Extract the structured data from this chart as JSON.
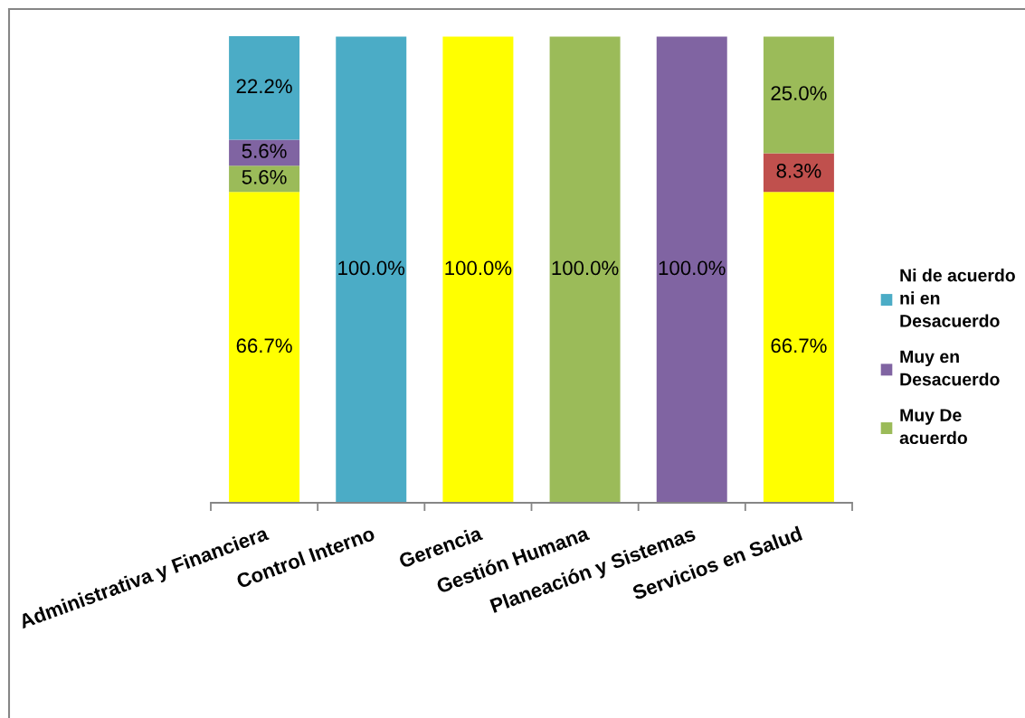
{
  "chart_data": {
    "type": "bar",
    "stacked": true,
    "legend": "right",
    "tick_labels": "x",
    "categories": [
      "Administrativa y Financiera",
      "Control Interno",
      "Gerencia",
      "Gestión Humana",
      "Planeación y Sistemas",
      "Servicios en Salud"
    ],
    "series": [
      {
        "color": "#ffff00",
        "values": [
          66.7,
          null,
          100.0,
          null,
          null,
          66.7
        ],
        "value_labels": [
          "66.7%",
          null,
          "100.0%",
          null,
          null,
          "66.7%"
        ]
      },
      {
        "color": "#c0504d",
        "values": [
          null,
          null,
          null,
          null,
          null,
          8.3
        ],
        "value_labels": [
          null,
          null,
          null,
          null,
          null,
          "8.3%"
        ]
      },
      {
        "name": "Muy De acuerdo",
        "color": "#9bbb59",
        "values": [
          5.6,
          null,
          null,
          100.0,
          null,
          25.0
        ],
        "value_labels": [
          "5.6%",
          null,
          null,
          "100.0%",
          null,
          "25.0%"
        ]
      },
      {
        "name": "Muy en Desacuerdo",
        "color": "#8064a2",
        "values": [
          5.6,
          null,
          null,
          null,
          100.0,
          null
        ],
        "value_labels": [
          "5.6%",
          null,
          null,
          null,
          "100.0%",
          null
        ]
      },
      {
        "name": "Ni de acuerdo ni en Desacuerdo",
        "color": "#4bacc6",
        "values": [
          22.2,
          100.0,
          null,
          null,
          null,
          null
        ],
        "value_labels": [
          "22.2%",
          "100.0%",
          null,
          null,
          null,
          null
        ]
      }
    ]
  }
}
